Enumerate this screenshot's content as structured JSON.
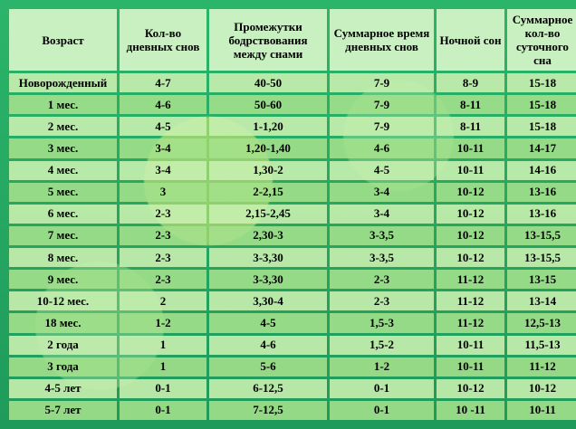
{
  "table": {
    "headers": [
      "Возраст",
      "Кол-во дневных снов",
      "Промежутки бодрствования между снами",
      "Суммарное время дневных снов",
      "Ночной сон",
      "Суммарное кол-во суточного сна"
    ],
    "rows": [
      [
        "Новорожденный",
        "4-7",
        "40-50",
        "7-9",
        "8-9",
        "15-18"
      ],
      [
        "1 мес.",
        "4-6",
        "50-60",
        "7-9",
        "8-11",
        "15-18"
      ],
      [
        "2 мес.",
        "4-5",
        "1-1,20",
        "7-9",
        "8-11",
        "15-18"
      ],
      [
        "3 мес.",
        "3-4",
        "1,20-1,40",
        "4-6",
        "10-11",
        "14-17"
      ],
      [
        "4 мес.",
        "3-4",
        "1,30-2",
        "4-5",
        "10-11",
        "14-16"
      ],
      [
        "5 мес.",
        "3",
        "2-2,15",
        "3-4",
        "10-12",
        "13-16"
      ],
      [
        "6 мес.",
        "2-3",
        "2,15-2,45",
        "3-4",
        "10-12",
        "13-16"
      ],
      [
        "7 мес.",
        "2-3",
        "2,30-3",
        "3-3,5",
        "10-12",
        "13-15,5"
      ],
      [
        "8 мес.",
        "2-3",
        "3-3,30",
        "3-3,5",
        "10-12",
        "13-15,5"
      ],
      [
        "9 мес.",
        "2-3",
        "3-3,30",
        "2-3",
        "11-12",
        "13-15"
      ],
      [
        "10-12 мес.",
        "2",
        "3,30-4",
        "2-3",
        "11-12",
        "13-14"
      ],
      [
        "18 мес.",
        "1-2",
        "4-5",
        "1,5-3",
        "11-12",
        "12,5-13"
      ],
      [
        "2 года",
        "1",
        "4-6",
        "1,5-2",
        "10-11",
        "11,5-13"
      ],
      [
        "3 года",
        "1",
        "5-6",
        "1-2",
        "10-11",
        "11-12"
      ],
      [
        "4-5 лет",
        "0-1",
        "6-12,5",
        "0-1",
        "10-12",
        "10-12"
      ],
      [
        "5-7 лет",
        "0-1",
        "7-12,5",
        "0-1",
        "10 -11",
        "10-11"
      ]
    ]
  },
  "colors": {
    "background": "#1aa055",
    "cell": "#c8f0af",
    "header": "#d7f5c8"
  }
}
